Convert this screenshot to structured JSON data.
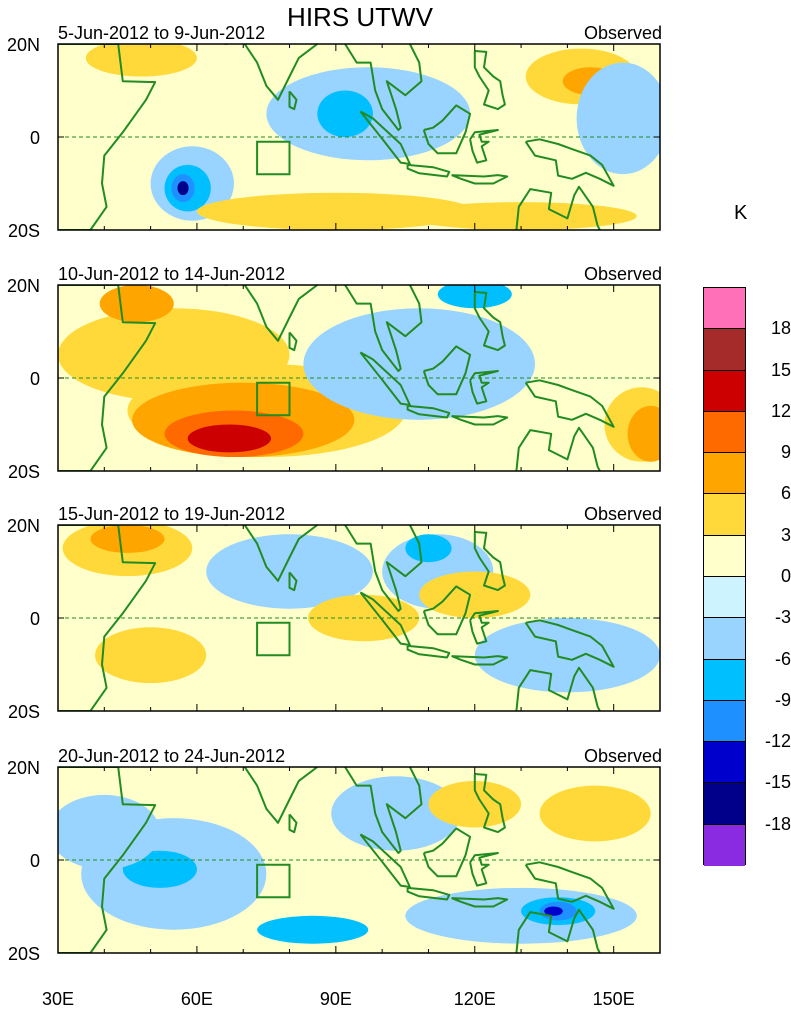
{
  "title": "HIRS UTWV",
  "unit": "K",
  "panels": [
    {
      "period": "5-Jun-2012 to 9-Jun-2012",
      "type": "Observed",
      "features": [
        {
          "level": "3",
          "lon": 48,
          "lat": 17,
          "rx": 12,
          "ry": 4
        },
        {
          "level": "3",
          "lon": 143,
          "lat": 13,
          "rx": 12,
          "ry": 6
        },
        {
          "level": "6",
          "lon": 145,
          "lat": 12,
          "rx": 6,
          "ry": 3
        },
        {
          "level": "-3",
          "lon": 97,
          "lat": 5,
          "rx": 22,
          "ry": 10
        },
        {
          "level": "-6",
          "lon": 92,
          "lat": 5,
          "rx": 6,
          "ry": 5
        },
        {
          "level": "-3",
          "lon": 152,
          "lat": 4,
          "rx": 10,
          "ry": 12
        },
        {
          "level": "-3",
          "lon": 59,
          "lat": -10,
          "rx": 9,
          "ry": 8
        },
        {
          "level": "-6",
          "lon": 58,
          "lat": -11,
          "rx": 5,
          "ry": 5
        },
        {
          "level": "-9",
          "lon": 57,
          "lat": -11,
          "rx": 2.5,
          "ry": 3
        },
        {
          "level": "-15",
          "lon": 57,
          "lat": -11,
          "rx": 1.2,
          "ry": 1.5
        },
        {
          "level": "3",
          "lon": 90,
          "lat": -16,
          "rx": 30,
          "ry": 4
        },
        {
          "level": "3",
          "lon": 130,
          "lat": -17,
          "rx": 25,
          "ry": 3
        }
      ]
    },
    {
      "period": "10-Jun-2012 to 14-Jun-2012",
      "type": "Observed",
      "features": [
        {
          "level": "3",
          "lon": 55,
          "lat": 5,
          "rx": 25,
          "ry": 10
        },
        {
          "level": "3",
          "lon": 75,
          "lat": -7,
          "rx": 30,
          "ry": 10
        },
        {
          "level": "6",
          "lon": 70,
          "lat": -9,
          "rx": 24,
          "ry": 8
        },
        {
          "level": "9",
          "lon": 68,
          "lat": -12,
          "rx": 15,
          "ry": 5
        },
        {
          "level": "12",
          "lon": 67,
          "lat": -13,
          "rx": 9,
          "ry": 3
        },
        {
          "level": "6",
          "lon": 47,
          "lat": 16,
          "rx": 8,
          "ry": 4
        },
        {
          "level": "-3",
          "lon": 108,
          "lat": 3,
          "rx": 25,
          "ry": 12
        },
        {
          "level": "-6",
          "lon": 120,
          "lat": 18,
          "rx": 8,
          "ry": 3
        },
        {
          "level": "3",
          "lon": 156,
          "lat": -10,
          "rx": 8,
          "ry": 8
        },
        {
          "level": "6",
          "lon": 158,
          "lat": -12,
          "rx": 5,
          "ry": 6
        }
      ]
    },
    {
      "period": "15-Jun-2012 to 19-Jun-2012",
      "type": "Observed",
      "features": [
        {
          "level": "3",
          "lon": 45,
          "lat": 15,
          "rx": 14,
          "ry": 6
        },
        {
          "level": "6",
          "lon": 45,
          "lat": 17,
          "rx": 8,
          "ry": 3
        },
        {
          "level": "-3",
          "lon": 80,
          "lat": 10,
          "rx": 18,
          "ry": 8
        },
        {
          "level": "-3",
          "lon": 112,
          "lat": 10,
          "rx": 12,
          "ry": 8
        },
        {
          "level": "-6",
          "lon": 110,
          "lat": 15,
          "rx": 5,
          "ry": 3
        },
        {
          "level": "3",
          "lon": 120,
          "lat": 5,
          "rx": 12,
          "ry": 5
        },
        {
          "level": "3",
          "lon": 50,
          "lat": -8,
          "rx": 12,
          "ry": 6
        },
        {
          "level": "3",
          "lon": 96,
          "lat": 0,
          "rx": 12,
          "ry": 5
        },
        {
          "level": "-3",
          "lon": 140,
          "lat": -8,
          "rx": 20,
          "ry": 8
        }
      ]
    },
    {
      "period": "20-Jun-2012 to 24-Jun-2012",
      "type": "Observed",
      "features": [
        {
          "level": "-3",
          "lon": 55,
          "lat": -3,
          "rx": 20,
          "ry": 12
        },
        {
          "level": "-6",
          "lon": 52,
          "lat": -2,
          "rx": 8,
          "ry": 4
        },
        {
          "level": "-3",
          "lon": 103,
          "lat": 10,
          "rx": 14,
          "ry": 8
        },
        {
          "level": "3",
          "lon": 120,
          "lat": 12,
          "rx": 10,
          "ry": 5
        },
        {
          "level": "3",
          "lon": 146,
          "lat": 10,
          "rx": 12,
          "ry": 6
        },
        {
          "level": "-3",
          "lon": 130,
          "lat": -12,
          "rx": 25,
          "ry": 6
        },
        {
          "level": "-6",
          "lon": 138,
          "lat": -11,
          "rx": 8,
          "ry": 3
        },
        {
          "level": "-9",
          "lon": 138,
          "lat": -11,
          "rx": 4,
          "ry": 2
        },
        {
          "level": "-12",
          "lon": 137,
          "lat": -11,
          "rx": 2,
          "ry": 1
        },
        {
          "level": "-6",
          "lon": 85,
          "lat": -15,
          "rx": 12,
          "ry": 3
        },
        {
          "level": "-3",
          "lon": 40,
          "lat": 6,
          "rx": 12,
          "ry": 8
        }
      ]
    }
  ],
  "lat_labels": [
    "20N",
    "0",
    "20S"
  ],
  "lon_labels": [
    "30E",
    "60E",
    "90E",
    "120E",
    "150E"
  ],
  "colorbar": {
    "labels": [
      "18",
      "15",
      "12",
      "9",
      "6",
      "3",
      "0",
      "-3",
      "-6",
      "-9",
      "-12",
      "-15",
      "-18"
    ],
    "colors": [
      "#ff70b8",
      "#a52a2a",
      "#cc0000",
      "#ff6a00",
      "#ffa500",
      "#ffd93a",
      "#ffffcc",
      "#ccf3ff",
      "#99d3ff",
      "#00bfff",
      "#1e90ff",
      "#0000cd",
      "#00008b",
      "#8a2be2"
    ]
  },
  "colors": {
    "land": "#228b22",
    "box": "#228b22",
    "equator": "#228b22",
    "base": "#ffffcc"
  }
}
